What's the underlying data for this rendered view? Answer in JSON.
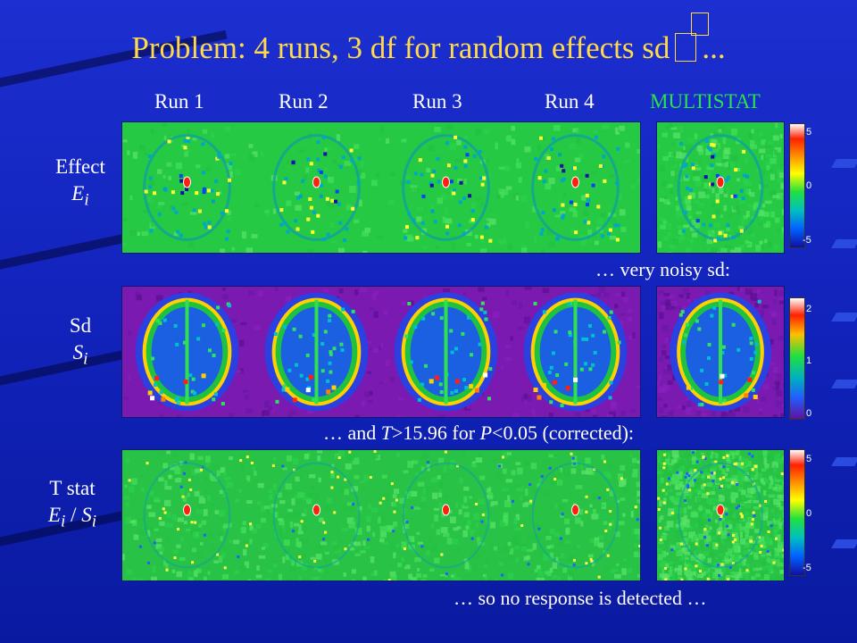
{
  "slide": {
    "title": "Problem: 4 runs, 3 df for random effects sd",
    "title_suffix": "...",
    "columns": [
      "Run 1",
      "Run 2",
      "Run 3",
      "Run 4",
      "MULTISTAT"
    ],
    "rows": [
      {
        "label": "Effect",
        "symbol": "E",
        "sub": "i"
      },
      {
        "label": "Sd",
        "symbol": "S",
        "sub": "i"
      },
      {
        "label": "T stat",
        "symbol_a": "E",
        "sub_a": "i",
        "sep": " / ",
        "symbol_b": "S",
        "sub_b": "i"
      }
    ],
    "captions": {
      "effect": "… very noisy sd:",
      "sd_pre": "…  and ",
      "sd_T": "T",
      "sd_mid": ">15.96 for ",
      "sd_P": "P",
      "sd_post": "<0.05 (corrected):",
      "tstat": "… so no response is detected …"
    },
    "colorbars": [
      {
        "ticks": [
          "5",
          "0",
          "-5"
        ]
      },
      {
        "ticks": [
          "2",
          "1",
          "0"
        ]
      },
      {
        "ticks": [
          "5",
          "0",
          "-5"
        ]
      }
    ],
    "colors": {
      "title": "#ffd94a",
      "multistat": "#29e34a",
      "text": "#ffffff",
      "background": "#1426c4"
    }
  }
}
